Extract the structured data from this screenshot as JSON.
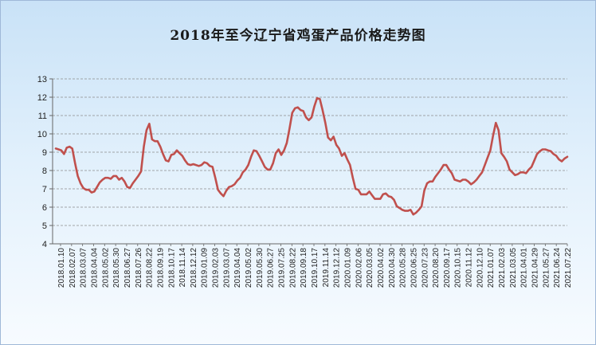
{
  "chart_data": {
    "type": "line",
    "title": "2018年至今辽宁省鸡蛋产品价格走势图",
    "xlabel": "",
    "ylabel": "",
    "ylim": [
      4,
      13
    ],
    "yticks": [
      4,
      5,
      6,
      7,
      8,
      9,
      10,
      11,
      12,
      13
    ],
    "grid": true,
    "legend": "none",
    "line_color": "#c0504d",
    "x_tick_labels": [
      "2018.01.10",
      "2018.02.07",
      "2018.03.07",
      "2018.04.04",
      "2018.05.02",
      "2018.05.30",
      "2018.06.27",
      "2018.07.26",
      "2018.08.22",
      "2018.09.19",
      "2018.10.17",
      "2018.11.14",
      "2018.12.12",
      "2019.01.09",
      "2019.02.03",
      "2019.03.07",
      "2019.04.04",
      "2019.05.02",
      "2019.05.30",
      "2019.06.27",
      "2019.07.25",
      "2019.08.22",
      "2019.09.18",
      "2019.10.17",
      "2019.11.14",
      "2019.12.12",
      "2020.01.09",
      "2020.02.06",
      "2020.03.05",
      "2020.04.02",
      "2020.04.30",
      "2020.05.28",
      "2020.06.25",
      "2020.07.23",
      "2020.08.20",
      "2020.09.17",
      "2020.10.15",
      "2020.11.12",
      "2020.12.10",
      "2021.01.07",
      "2021.02.03",
      "2021.03.05",
      "2021.04.01",
      "2021.04.29",
      "2021.05.27",
      "2021.06.24",
      "2021.07.22"
    ],
    "series": [
      {
        "values": [
          9.2,
          9.15,
          9.1,
          8.9,
          9.25,
          9.3,
          9.2,
          8.4,
          7.7,
          7.3,
          7.05,
          6.95,
          6.95,
          6.8,
          6.85,
          7.1,
          7.35,
          7.5,
          7.6,
          7.6,
          7.55,
          7.7,
          7.7,
          7.5,
          7.6,
          7.4,
          7.1,
          7.05,
          7.3,
          7.5,
          7.7,
          7.95,
          9.3,
          10.2,
          10.55,
          9.7,
          9.6,
          9.6,
          9.3,
          8.9,
          8.55,
          8.5,
          8.85,
          8.9,
          9.1,
          8.95,
          8.8,
          8.55,
          8.35,
          8.3,
          8.35,
          8.3,
          8.25,
          8.3,
          8.45,
          8.4,
          8.25,
          8.2,
          7.6,
          6.95,
          6.75,
          6.6,
          6.9,
          7.1,
          7.15,
          7.25,
          7.45,
          7.6,
          7.9,
          8.05,
          8.3,
          8.75,
          9.1,
          9.05,
          8.8,
          8.5,
          8.2,
          8.05,
          8.05,
          8.4,
          8.95,
          9.15,
          8.85,
          9.1,
          9.5,
          10.3,
          11.15,
          11.4,
          11.45,
          11.3,
          11.25,
          10.9,
          10.75,
          10.9,
          11.5,
          11.95,
          11.9,
          11.3,
          10.6,
          9.8,
          9.65,
          9.85,
          9.4,
          9.2,
          8.8,
          8.95,
          8.6,
          8.3,
          7.6,
          7.0,
          6.95,
          6.7,
          6.7,
          6.7,
          6.85,
          6.65,
          6.45,
          6.45,
          6.45,
          6.7,
          6.75,
          6.6,
          6.55,
          6.4,
          6.05,
          5.95,
          5.85,
          5.8,
          5.8,
          5.85,
          5.6,
          5.7,
          5.85,
          6.05,
          6.9,
          7.3,
          7.4,
          7.4,
          7.65,
          7.85,
          8.05,
          8.3,
          8.3,
          8.05,
          7.85,
          7.5,
          7.45,
          7.4,
          7.5,
          7.5,
          7.4,
          7.25,
          7.35,
          7.5,
          7.7,
          7.9,
          8.3,
          8.7,
          9.1,
          9.9,
          10.6,
          10.2,
          8.95,
          8.75,
          8.5,
          8.05,
          7.9,
          7.75,
          7.8,
          7.9,
          7.9,
          7.85,
          8.05,
          8.2,
          8.55,
          8.9,
          9.05,
          9.15,
          9.15,
          9.1,
          9.05,
          8.9,
          8.8,
          8.6,
          8.5,
          8.65,
          8.75
        ]
      }
    ]
  }
}
